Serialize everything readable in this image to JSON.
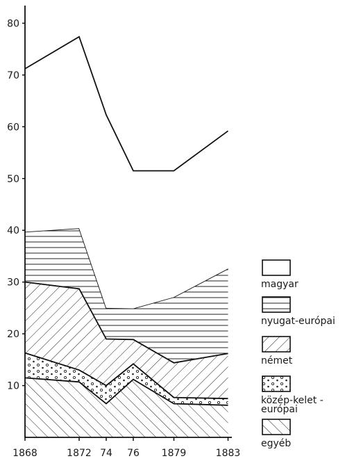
{
  "chart_data": {
    "type": "area",
    "stacked": true,
    "x": [
      "1868",
      "1872",
      "1874",
      "1876",
      "1879",
      "1883"
    ],
    "x_tick_labels": [
      "1868",
      "1872",
      "74",
      "76",
      "1879",
      "1883"
    ],
    "yticks": [
      10,
      20,
      30,
      40,
      50,
      60,
      70,
      80
    ],
    "ylim": [
      0,
      84
    ],
    "grid": false,
    "legend_position": "right",
    "series": [
      {
        "name": "egyéb",
        "values": [
          11.5,
          10.7,
          6.5,
          11.2,
          6.5,
          6.2
        ],
        "pattern": "diagonal-up"
      },
      {
        "name": "közép-kelet-európai",
        "values": [
          4.8,
          2.3,
          3.5,
          3.0,
          1.2,
          1.3
        ],
        "pattern": "dots"
      },
      {
        "name": "német",
        "values": [
          13.7,
          15.7,
          9.0,
          4.7,
          6.7,
          8.7
        ],
        "pattern": "diagonal-down"
      },
      {
        "name": "nyugat-európai",
        "values": [
          9.7,
          11.7,
          6.0,
          6.0,
          12.7,
          16.4
        ],
        "pattern": "horizontal"
      },
      {
        "name": "magyar",
        "values": [
          31.5,
          37.0,
          37.3,
          26.6,
          24.4,
          26.6
        ],
        "pattern": "none"
      }
    ],
    "legend": [
      {
        "label": "magyar",
        "pattern": "none"
      },
      {
        "label": "nyugat-európai",
        "pattern": "horizontal"
      },
      {
        "label": "német",
        "pattern": "diagonal-down"
      },
      {
        "label": "közép-kelet-európai",
        "label_lines": [
          "közép-kelet -",
          "európai"
        ],
        "pattern": "dots"
      },
      {
        "label": "egyéb",
        "pattern": "diagonal-up"
      }
    ]
  }
}
